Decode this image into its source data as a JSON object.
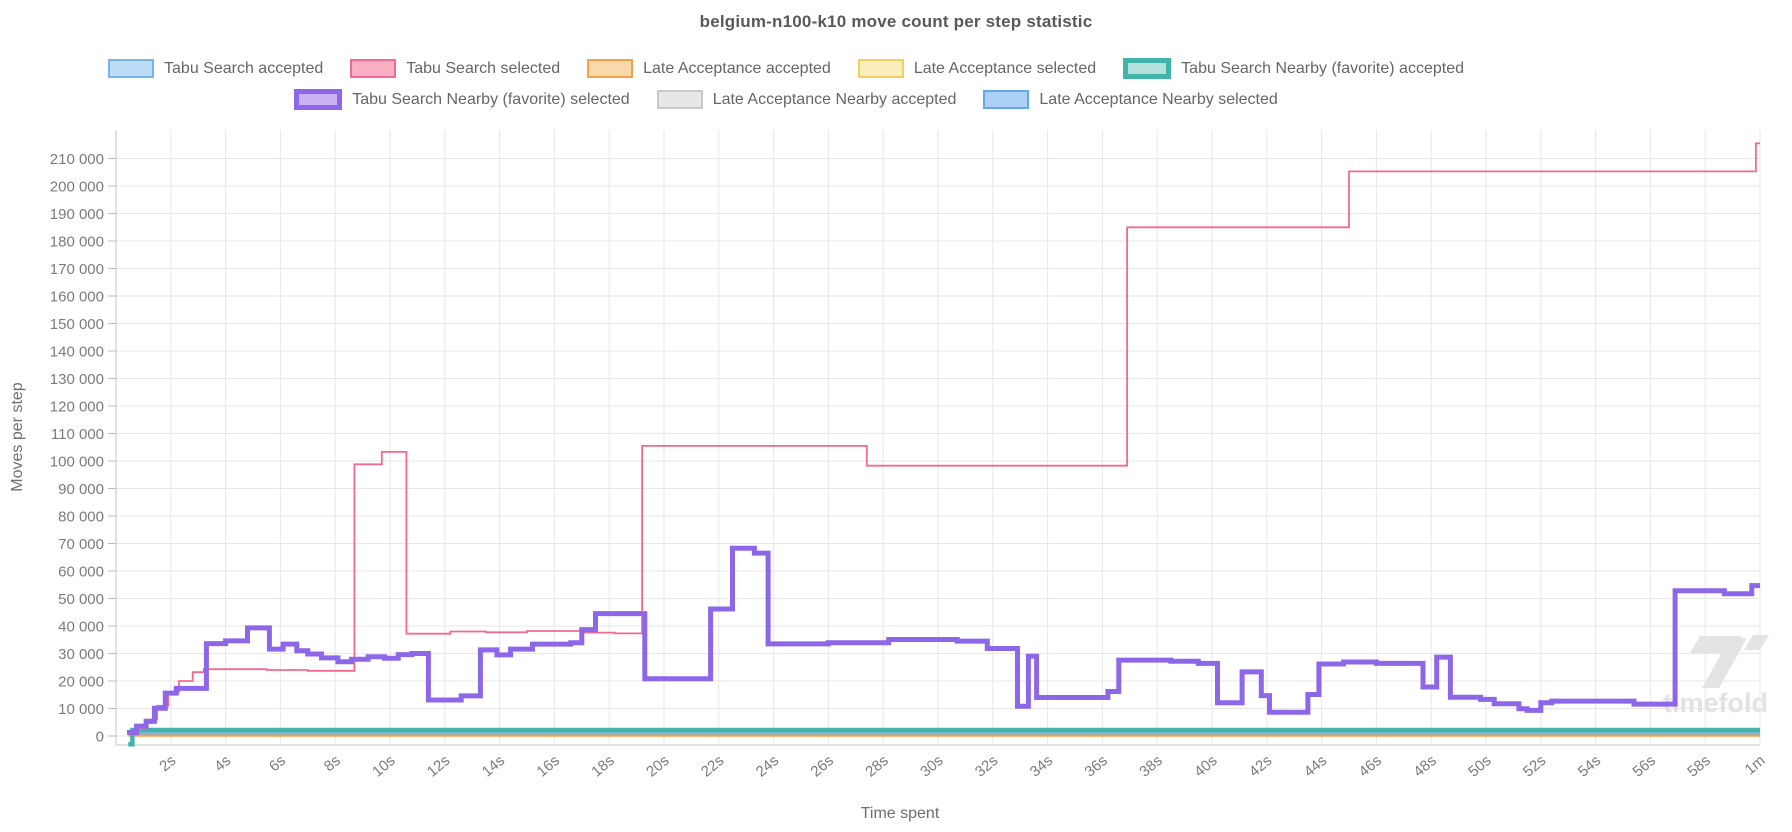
{
  "title": "belgium-n100-k10 move count per step statistic",
  "watermark": "timefold",
  "axes": {
    "y_label": "Moves per step",
    "x_label": "Time spent",
    "y_ticks": [
      {
        "v": 0,
        "label": "0"
      },
      {
        "v": 10000,
        "label": "10 000"
      },
      {
        "v": 20000,
        "label": "20 000"
      },
      {
        "v": 30000,
        "label": "30 000"
      },
      {
        "v": 40000,
        "label": "40 000"
      },
      {
        "v": 50000,
        "label": "50 000"
      },
      {
        "v": 60000,
        "label": "60 000"
      },
      {
        "v": 70000,
        "label": "70 000"
      },
      {
        "v": 80000,
        "label": "80 000"
      },
      {
        "v": 90000,
        "label": "90 000"
      },
      {
        "v": 100000,
        "label": "100 000"
      },
      {
        "v": 110000,
        "label": "110 000"
      },
      {
        "v": 120000,
        "label": "120 000"
      },
      {
        "v": 130000,
        "label": "130 000"
      },
      {
        "v": 140000,
        "label": "140 000"
      },
      {
        "v": 150000,
        "label": "150 000"
      },
      {
        "v": 160000,
        "label": "160 000"
      },
      {
        "v": 170000,
        "label": "170 000"
      },
      {
        "v": 180000,
        "label": "180 000"
      },
      {
        "v": 190000,
        "label": "190 000"
      },
      {
        "v": 200000,
        "label": "200 000"
      },
      {
        "v": 210000,
        "label": "210 000"
      }
    ],
    "x_ticks": [
      {
        "t": 2,
        "label": "2s"
      },
      {
        "t": 4,
        "label": "4s"
      },
      {
        "t": 6,
        "label": "6s"
      },
      {
        "t": 8,
        "label": "8s"
      },
      {
        "t": 10,
        "label": "10s"
      },
      {
        "t": 12,
        "label": "12s"
      },
      {
        "t": 14,
        "label": "14s"
      },
      {
        "t": 16,
        "label": "16s"
      },
      {
        "t": 18,
        "label": "18s"
      },
      {
        "t": 20,
        "label": "20s"
      },
      {
        "t": 22,
        "label": "22s"
      },
      {
        "t": 24,
        "label": "24s"
      },
      {
        "t": 26,
        "label": "26s"
      },
      {
        "t": 28,
        "label": "28s"
      },
      {
        "t": 30,
        "label": "30s"
      },
      {
        "t": 32,
        "label": "32s"
      },
      {
        "t": 34,
        "label": "34s"
      },
      {
        "t": 36,
        "label": "36s"
      },
      {
        "t": 38,
        "label": "38s"
      },
      {
        "t": 40,
        "label": "40s"
      },
      {
        "t": 42,
        "label": "42s"
      },
      {
        "t": 44,
        "label": "44s"
      },
      {
        "t": 46,
        "label": "46s"
      },
      {
        "t": 48,
        "label": "48s"
      },
      {
        "t": 50,
        "label": "50s"
      },
      {
        "t": 52,
        "label": "52s"
      },
      {
        "t": 54,
        "label": "54s"
      },
      {
        "t": 56,
        "label": "56s"
      },
      {
        "t": 58,
        "label": "58s"
      },
      {
        "t": 60,
        "label": "1m"
      }
    ]
  },
  "colors": {
    "grid": "#e7e7e7",
    "axis": "#cfcfcf",
    "tick_text": "#7b7b7b",
    "axis_title_text": "#6e6e6e",
    "title_text": "#595959",
    "legend_text": "#666666",
    "watermark": "#e3e3e3"
  },
  "chart_data": {
    "type": "line",
    "step": "after",
    "title": "belgium-n100-k10 move count per step statistic",
    "xlabel": "Time spent",
    "ylabel": "Moves per step",
    "xlim_seconds": [
      0,
      60
    ],
    "ylim": [
      0,
      218000
    ],
    "grid": true,
    "legend_position": "top",
    "series": [
      {
        "key": "ts_accepted",
        "name": "Tabu Search accepted",
        "color": "#74b4e8",
        "legend_fill": "#bcdcf7",
        "favorite": false,
        "legend_row": 1,
        "width": 2.5,
        "z": 4,
        "points": [
          [
            0.45,
            900
          ],
          [
            60,
            900
          ]
        ]
      },
      {
        "key": "ts_selected",
        "name": "Tabu Search selected",
        "color": "#f4698f",
        "legend_fill": "#f9b0c5",
        "favorite": false,
        "legend_row": 1,
        "width": 1.8,
        "z": 7,
        "points": [
          [
            0.45,
            600
          ],
          [
            0.8,
            2600
          ],
          [
            1.1,
            6000
          ],
          [
            1.5,
            11000
          ],
          [
            1.9,
            16000
          ],
          [
            2.3,
            20000
          ],
          [
            2.8,
            23200
          ],
          [
            3.2,
            24300
          ],
          [
            5.5,
            24000
          ],
          [
            7,
            23700
          ],
          [
            8.7,
            98800
          ],
          [
            9.7,
            103300
          ],
          [
            10.6,
            37200
          ],
          [
            12.2,
            38000
          ],
          [
            13.5,
            37700
          ],
          [
            15,
            38200
          ],
          [
            17,
            37600
          ],
          [
            18.2,
            37300
          ],
          [
            19.2,
            105500
          ],
          [
            27.4,
            98300
          ],
          [
            36.9,
            185000
          ],
          [
            45,
            205300
          ],
          [
            59.85,
            215500
          ],
          [
            60,
            215500
          ]
        ]
      },
      {
        "key": "la_accepted",
        "name": "Late Acceptance accepted",
        "color": "#f5a04a",
        "legend_fill": "#fbd8a9",
        "favorite": false,
        "legend_row": 1,
        "width": 2.2,
        "z": 5,
        "points": [
          [
            0.45,
            150
          ],
          [
            60,
            150
          ]
        ]
      },
      {
        "key": "la_selected",
        "name": "Late Acceptance selected",
        "color": "#f3cf63",
        "legend_fill": "#faeebd",
        "favorite": false,
        "legend_row": 1,
        "width": 2,
        "z": 2,
        "points": [
          [
            0.45,
            350
          ],
          [
            60,
            350
          ]
        ]
      },
      {
        "key": "tsn_accepted",
        "name": "Tabu Search Nearby (favorite) accepted",
        "color": "#42b3a8",
        "legend_fill": "#b2e0da",
        "favorite": true,
        "legend_row": 1,
        "width": 4.5,
        "z": 6,
        "points": [
          [
            0.45,
            -3000
          ],
          [
            0.6,
            2200
          ],
          [
            60,
            2200
          ]
        ]
      },
      {
        "key": "tsn_selected",
        "name": "Tabu Search Nearby (favorite) selected",
        "color": "#8d67e8",
        "legend_fill": "#c9b2f4",
        "favorite": true,
        "legend_row": 2,
        "width": 5,
        "z": 8,
        "points": [
          [
            0.4,
            1300
          ],
          [
            0.75,
            3600
          ],
          [
            1.1,
            5300
          ],
          [
            1.4,
            10100
          ],
          [
            1.8,
            15600
          ],
          [
            2.2,
            17300
          ],
          [
            3.3,
            33600
          ],
          [
            4,
            34600
          ],
          [
            4.8,
            39300
          ],
          [
            5.6,
            31600
          ],
          [
            6.1,
            33400
          ],
          [
            6.6,
            31000
          ],
          [
            7,
            29800
          ],
          [
            7.5,
            28400
          ],
          [
            8.1,
            27000
          ],
          [
            8.6,
            27900
          ],
          [
            9.2,
            28800
          ],
          [
            9.8,
            28300
          ],
          [
            10.3,
            29600
          ],
          [
            10.8,
            30000
          ],
          [
            11.4,
            13100
          ],
          [
            12.6,
            14600
          ],
          [
            13.3,
            31300
          ],
          [
            13.9,
            29500
          ],
          [
            14.4,
            31600
          ],
          [
            15.2,
            33400
          ],
          [
            16.6,
            33900
          ],
          [
            17,
            38700
          ],
          [
            17.5,
            44500
          ],
          [
            19.3,
            20800
          ],
          [
            21.7,
            46200
          ],
          [
            22.5,
            68300
          ],
          [
            23.3,
            66500
          ],
          [
            23.8,
            33500
          ],
          [
            26,
            33900
          ],
          [
            28.2,
            35100
          ],
          [
            30.7,
            34500
          ],
          [
            31.8,
            31800
          ],
          [
            32.9,
            10800
          ],
          [
            33.3,
            29000
          ],
          [
            33.6,
            14000
          ],
          [
            36.2,
            16200
          ],
          [
            36.6,
            27600
          ],
          [
            38.5,
            27200
          ],
          [
            39.5,
            26400
          ],
          [
            40.2,
            12100
          ],
          [
            41.1,
            23300
          ],
          [
            41.8,
            14700
          ],
          [
            42.1,
            8650
          ],
          [
            43.5,
            15100
          ],
          [
            43.9,
            26200
          ],
          [
            44.8,
            26900
          ],
          [
            46,
            26400
          ],
          [
            47.7,
            17800
          ],
          [
            48.2,
            28700
          ],
          [
            48.7,
            14100
          ],
          [
            49.8,
            13300
          ],
          [
            50.3,
            11700
          ],
          [
            51.2,
            9900
          ],
          [
            51.5,
            9300
          ],
          [
            52,
            12100
          ],
          [
            52.4,
            12700
          ],
          [
            55.4,
            11600
          ],
          [
            56.9,
            52800
          ],
          [
            58.7,
            51700
          ],
          [
            59.7,
            54700
          ],
          [
            60,
            54700
          ]
        ]
      },
      {
        "key": "lan_accepted",
        "name": "Late Acceptance Nearby accepted",
        "color": "#c9c9c9",
        "legend_fill": "#e7e7e7",
        "favorite": false,
        "legend_row": 2,
        "width": 2.5,
        "z": 1,
        "points": [
          [
            0.5,
            1800
          ],
          [
            60,
            1800
          ]
        ]
      },
      {
        "key": "lan_selected",
        "name": "Late Acceptance Nearby selected",
        "color": "#63a8e8",
        "legend_fill": "#abd2f4",
        "favorite": false,
        "legend_row": 2,
        "width": 2.5,
        "z": 3,
        "points": [
          [
            0.5,
            800
          ],
          [
            60,
            800
          ]
        ]
      }
    ]
  }
}
